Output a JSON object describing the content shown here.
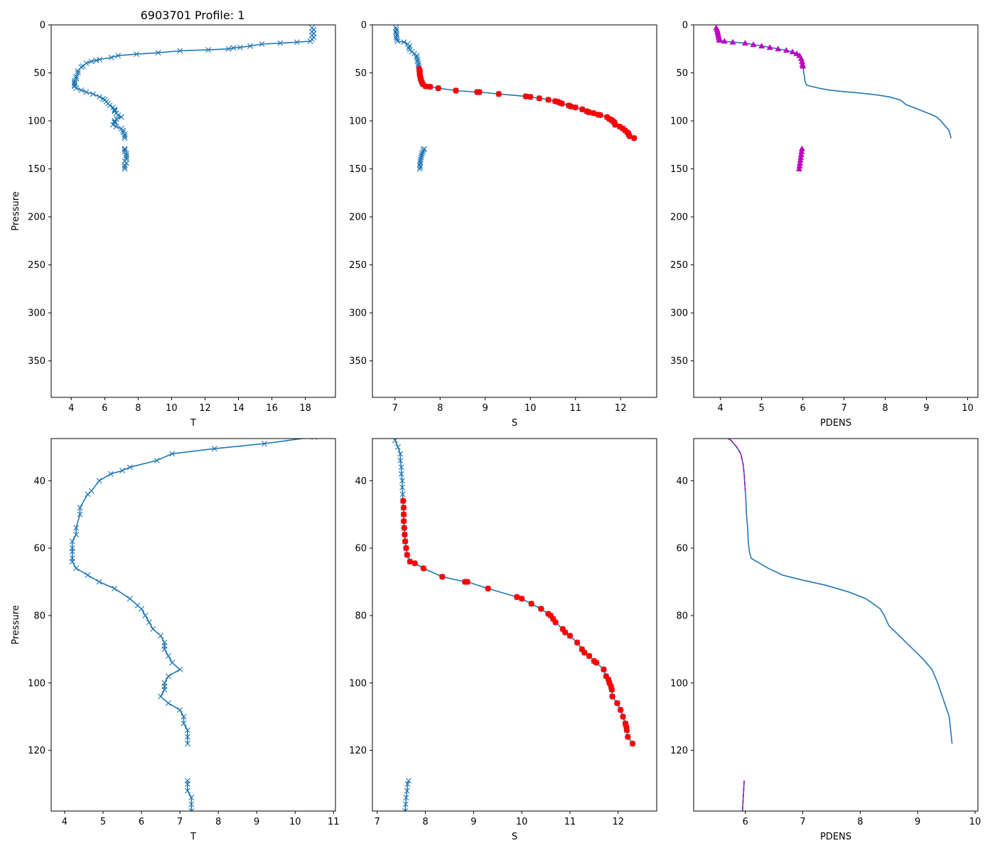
{
  "figure_title": "6903701 Profile: 1",
  "colors": {
    "series": "#1f77b4",
    "flag_red": "#ff0000",
    "flag_magenta": "#bf00bf"
  },
  "profiles": {
    "T": [
      [
        18.4,
        3
      ],
      [
        18.5,
        5
      ],
      [
        18.4,
        7
      ],
      [
        18.5,
        9
      ],
      [
        18.4,
        11
      ],
      [
        18.5,
        13
      ],
      [
        18.4,
        15
      ],
      [
        18.3,
        17
      ],
      [
        17.5,
        18
      ],
      [
        16.5,
        19
      ],
      [
        15.4,
        20
      ],
      [
        14.7,
        22
      ],
      [
        14.1,
        23.5
      ],
      [
        13.7,
        24
      ],
      [
        13.4,
        25
      ],
      [
        12.2,
        26
      ],
      [
        10.5,
        27
      ],
      [
        9.2,
        29
      ],
      [
        7.9,
        30.5
      ],
      [
        6.8,
        32
      ],
      [
        6.4,
        34
      ],
      [
        5.7,
        36
      ],
      [
        5.5,
        37
      ],
      [
        5.2,
        38
      ],
      [
        4.9,
        40
      ],
      [
        4.7,
        43
      ],
      [
        4.6,
        44
      ],
      [
        4.4,
        48
      ],
      [
        4.4,
        50
      ],
      [
        4.3,
        54
      ],
      [
        4.3,
        56
      ],
      [
        4.2,
        58
      ],
      [
        4.2,
        60
      ],
      [
        4.2,
        61
      ],
      [
        4.2,
        63
      ],
      [
        4.2,
        64
      ],
      [
        4.3,
        66
      ],
      [
        4.6,
        68
      ],
      [
        4.9,
        70
      ],
      [
        5.3,
        72
      ],
      [
        5.7,
        75
      ],
      [
        5.9,
        77
      ],
      [
        6.0,
        78
      ],
      [
        6.1,
        80
      ],
      [
        6.2,
        82
      ],
      [
        6.3,
        84
      ],
      [
        6.5,
        86
      ],
      [
        6.6,
        88
      ],
      [
        6.6,
        89
      ],
      [
        6.6,
        90
      ],
      [
        6.7,
        92
      ],
      [
        6.8,
        94
      ],
      [
        7.0,
        96
      ],
      [
        6.7,
        98
      ],
      [
        6.6,
        100
      ],
      [
        6.6,
        101
      ],
      [
        6.6,
        102
      ],
      [
        6.5,
        104
      ],
      [
        6.7,
        106
      ],
      [
        7.0,
        108
      ],
      [
        7.1,
        110
      ],
      [
        7.1,
        112
      ],
      [
        7.2,
        114
      ],
      [
        7.2,
        116
      ],
      [
        7.2,
        118
      ],
      null,
      [
        7.2,
        129
      ],
      [
        7.2,
        130
      ],
      [
        7.2,
        132
      ],
      [
        7.3,
        134
      ],
      [
        7.3,
        136
      ],
      [
        7.3,
        138
      ],
      [
        7.3,
        140
      ],
      [
        7.2,
        142
      ],
      [
        7.3,
        144
      ],
      [
        7.2,
        146
      ],
      [
        7.2,
        148
      ],
      [
        7.2,
        150
      ]
    ],
    "S": [
      [
        7.02,
        3
      ],
      [
        7.03,
        5
      ],
      [
        7.02,
        7
      ],
      [
        7.03,
        9
      ],
      [
        7.04,
        11
      ],
      [
        7.03,
        13
      ],
      [
        7.04,
        15
      ],
      [
        7.06,
        17
      ],
      [
        7.2,
        18
      ],
      [
        7.28,
        20
      ],
      [
        7.32,
        22
      ],
      [
        7.31,
        24
      ],
      [
        7.33,
        26
      ],
      [
        7.37,
        28
      ],
      [
        7.43,
        30
      ],
      [
        7.48,
        32
      ],
      [
        7.48,
        34
      ],
      [
        7.5,
        36
      ],
      [
        7.5,
        38
      ],
      [
        7.52,
        40
      ],
      [
        7.52,
        42
      ],
      [
        7.53,
        44
      ],
      [
        7.53,
        46
      ],
      [
        7.54,
        48
      ],
      [
        7.55,
        50
      ],
      [
        7.55,
        52
      ],
      [
        7.56,
        54
      ],
      [
        7.57,
        56
      ],
      [
        7.58,
        58
      ],
      [
        7.6,
        60
      ],
      [
        7.62,
        62
      ],
      [
        7.68,
        64
      ],
      [
        7.78,
        64.5
      ],
      [
        7.96,
        66
      ],
      [
        8.35,
        68.5
      ],
      [
        8.82,
        70
      ],
      [
        8.87,
        70
      ],
      [
        9.3,
        72
      ],
      [
        9.9,
        74.5
      ],
      [
        10.0,
        75
      ],
      [
        10.2,
        76.5
      ],
      [
        10.4,
        78
      ],
      [
        10.55,
        79.5
      ],
      [
        10.6,
        80
      ],
      [
        10.65,
        81
      ],
      [
        10.7,
        82
      ],
      [
        10.85,
        84
      ],
      [
        10.9,
        85
      ],
      [
        11.0,
        86
      ],
      [
        11.15,
        88
      ],
      [
        11.25,
        90
      ],
      [
        11.3,
        91
      ],
      [
        11.4,
        92
      ],
      [
        11.5,
        93.5
      ],
      [
        11.55,
        94
      ],
      [
        11.7,
        96
      ],
      [
        11.75,
        98
      ],
      [
        11.8,
        99
      ],
      [
        11.82,
        100
      ],
      [
        11.85,
        101
      ],
      [
        11.87,
        102
      ],
      [
        11.88,
        104
      ],
      [
        11.98,
        106
      ],
      [
        12.05,
        108
      ],
      [
        12.1,
        110
      ],
      [
        12.15,
        112
      ],
      [
        12.17,
        113
      ],
      [
        12.18,
        114
      ],
      [
        12.2,
        116
      ],
      [
        12.3,
        118
      ],
      null,
      [
        7.65,
        129
      ],
      [
        7.63,
        130
      ],
      [
        7.62,
        132
      ],
      [
        7.6,
        134
      ],
      [
        7.59,
        136
      ],
      [
        7.58,
        138
      ],
      [
        7.57,
        140
      ],
      [
        7.56,
        142
      ],
      [
        7.56,
        144
      ],
      [
        7.55,
        146
      ],
      [
        7.56,
        148
      ],
      [
        7.55,
        150
      ]
    ],
    "S_flag_p": [
      [
        7.54,
        46
      ],
      [
        7.55,
        48
      ],
      [
        7.55,
        50
      ],
      [
        7.55,
        52
      ],
      [
        7.56,
        54
      ],
      [
        7.57,
        56
      ],
      [
        7.58,
        58
      ],
      [
        7.6,
        60
      ],
      [
        7.62,
        62
      ],
      [
        7.68,
        64
      ],
      [
        7.78,
        64.5
      ],
      [
        7.96,
        66
      ],
      [
        8.35,
        68.5
      ],
      [
        8.82,
        70
      ],
      [
        8.87,
        70
      ],
      [
        9.3,
        72
      ],
      [
        9.9,
        74.5
      ],
      [
        10.0,
        75
      ],
      [
        10.2,
        76.5
      ],
      [
        10.4,
        78
      ],
      [
        10.55,
        79.5
      ],
      [
        10.6,
        80
      ],
      [
        10.65,
        81
      ],
      [
        10.7,
        82
      ],
      [
        10.85,
        84
      ],
      [
        10.9,
        85
      ],
      [
        11.0,
        86
      ],
      [
        11.15,
        88
      ],
      [
        11.25,
        90
      ],
      [
        11.3,
        91
      ],
      [
        11.4,
        92
      ],
      [
        11.5,
        93.5
      ],
      [
        11.55,
        94
      ],
      [
        11.7,
        96
      ],
      [
        11.75,
        98
      ],
      [
        11.8,
        99
      ],
      [
        11.82,
        100
      ],
      [
        11.85,
        101
      ],
      [
        11.87,
        102
      ],
      [
        11.88,
        104
      ],
      [
        11.98,
        106
      ],
      [
        12.05,
        108
      ],
      [
        12.1,
        110
      ],
      [
        12.15,
        112
      ],
      [
        12.17,
        113
      ],
      [
        12.18,
        114
      ],
      [
        12.2,
        116
      ],
      [
        12.3,
        118
      ]
    ],
    "PDENS": [
      [
        3.9,
        3
      ],
      [
        3.92,
        5
      ],
      [
        3.93,
        7
      ],
      [
        3.94,
        9
      ],
      [
        3.95,
        11
      ],
      [
        3.96,
        13
      ],
      [
        3.97,
        15
      ],
      [
        3.98,
        16
      ],
      [
        4.1,
        17
      ],
      [
        4.3,
        18
      ],
      [
        4.6,
        19
      ],
      [
        4.8,
        20.5
      ],
      [
        5.0,
        22
      ],
      [
        5.2,
        23.5
      ],
      [
        5.4,
        25
      ],
      [
        5.6,
        26.5
      ],
      [
        5.75,
        28
      ],
      [
        5.85,
        30
      ],
      [
        5.92,
        32
      ],
      [
        5.96,
        35
      ],
      [
        5.98,
        38
      ],
      [
        5.99,
        41
      ],
      [
        6.0,
        43
      ],
      [
        6.01,
        46
      ],
      [
        6.02,
        50
      ],
      [
        6.04,
        54
      ],
      [
        6.05,
        58
      ],
      [
        6.07,
        61
      ],
      [
        6.1,
        63
      ],
      [
        6.2,
        64
      ],
      [
        6.4,
        66
      ],
      [
        6.65,
        68
      ],
      [
        7.0,
        69.5
      ],
      [
        7.4,
        71
      ],
      [
        7.8,
        73
      ],
      [
        8.1,
        75
      ],
      [
        8.35,
        78
      ],
      [
        8.42,
        80
      ],
      [
        8.5,
        83
      ],
      [
        8.8,
        88
      ],
      [
        9.1,
        93
      ],
      [
        9.25,
        96
      ],
      [
        9.35,
        100
      ],
      [
        9.45,
        105
      ],
      [
        9.55,
        110
      ],
      [
        9.6,
        118
      ],
      null,
      [
        5.98,
        129
      ],
      [
        5.97,
        132
      ],
      [
        5.96,
        135
      ],
      [
        5.95,
        138
      ],
      [
        5.94,
        141
      ],
      [
        5.93,
        144
      ],
      [
        5.92,
        147
      ],
      [
        5.91,
        150
      ]
    ],
    "PDENS_flag_top": [
      [
        3.9,
        3
      ],
      [
        3.92,
        5
      ],
      [
        3.93,
        7
      ],
      [
        3.94,
        9
      ],
      [
        3.95,
        11
      ],
      [
        3.96,
        13
      ],
      [
        3.97,
        15
      ],
      [
        3.98,
        16
      ],
      [
        4.1,
        17
      ],
      [
        4.3,
        18
      ],
      [
        4.6,
        19
      ],
      [
        4.8,
        20.5
      ],
      [
        5.0,
        22
      ],
      [
        5.2,
        23.5
      ],
      [
        5.4,
        25
      ],
      [
        5.6,
        26.5
      ],
      [
        5.75,
        28
      ],
      [
        5.85,
        30
      ],
      [
        5.92,
        32
      ],
      [
        5.96,
        35
      ],
      [
        5.98,
        38
      ],
      [
        5.99,
        41
      ],
      [
        6.0,
        43
      ]
    ],
    "PDENS_flag_bottom": [
      [
        5.98,
        129
      ],
      [
        5.97,
        132
      ],
      [
        5.96,
        135
      ],
      [
        5.95,
        138
      ],
      [
        5.94,
        141
      ],
      [
        5.93,
        144
      ],
      [
        5.92,
        147
      ],
      [
        5.91,
        150
      ]
    ]
  },
  "chart_data": [
    {
      "type": "line",
      "panel": "top-left",
      "title": "6903701 Profile: 1",
      "xlabel": "T",
      "ylabel": "Pressure",
      "xlim": [
        2.8,
        19.8
      ],
      "ylim": [
        388,
        0
      ],
      "yinvert": true,
      "xticks": [
        4,
        6,
        8,
        10,
        12,
        14,
        16,
        18
      ],
      "yticks": [
        0,
        50,
        100,
        150,
        200,
        250,
        300,
        350
      ],
      "series": [
        {
          "name": "T",
          "key": "T",
          "marker": "x",
          "line": true
        }
      ]
    },
    {
      "type": "line",
      "panel": "top-middle",
      "xlabel": "S",
      "ylabel": "",
      "xlim": [
        6.5,
        12.8
      ],
      "ylim": [
        388,
        0
      ],
      "yinvert": true,
      "xticks": [
        7,
        8,
        9,
        10,
        11,
        12
      ],
      "yticks": [
        0,
        50,
        100,
        150,
        200,
        250,
        300,
        350
      ],
      "series": [
        {
          "name": "S",
          "key": "S",
          "marker": "x",
          "line": true
        },
        {
          "name": "S flagged",
          "key": "S_flag_p",
          "marker": "red-dot",
          "line": false
        }
      ]
    },
    {
      "type": "line",
      "panel": "top-right",
      "xlabel": "PDENS",
      "ylabel": "",
      "xlim": [
        3.35,
        10.25
      ],
      "ylim": [
        388,
        0
      ],
      "yinvert": true,
      "xticks": [
        4,
        5,
        6,
        7,
        8,
        9,
        10
      ],
      "yticks": [
        0,
        50,
        100,
        150,
        200,
        250,
        300,
        350
      ],
      "series": [
        {
          "name": "PDENS",
          "key": "PDENS",
          "marker": "none",
          "line": true
        },
        {
          "name": "PDENS flagged",
          "key": "PDENS_flag_top",
          "marker": "magenta-triangle",
          "line": false
        },
        {
          "name": "PDENS flagged deep",
          "key": "PDENS_flag_bottom",
          "marker": "magenta-triangle",
          "line": false
        }
      ]
    },
    {
      "type": "line",
      "panel": "bottom-left",
      "xlabel": "T",
      "ylabel": "Pressure",
      "xlim": [
        3.65,
        11.05
      ],
      "ylim": [
        138,
        27.5
      ],
      "yinvert": true,
      "xticks": [
        4,
        5,
        6,
        7,
        8,
        9,
        10,
        11
      ],
      "yticks": [
        40,
        60,
        80,
        100,
        120
      ],
      "series": [
        {
          "name": "T",
          "key": "T",
          "marker": "x",
          "line": true
        }
      ]
    },
    {
      "type": "line",
      "panel": "bottom-middle",
      "xlabel": "S",
      "ylabel": "",
      "xlim": [
        6.9,
        12.8
      ],
      "ylim": [
        138,
        27.5
      ],
      "yinvert": true,
      "xticks": [
        7,
        8,
        9,
        10,
        11,
        12
      ],
      "yticks": [
        40,
        60,
        80,
        100,
        120
      ],
      "series": [
        {
          "name": "S",
          "key": "S",
          "marker": "x",
          "line": true
        },
        {
          "name": "S flagged",
          "key": "S_flag_p",
          "marker": "red-dot",
          "line": false
        }
      ]
    },
    {
      "type": "line",
      "panel": "bottom-right",
      "xlabel": "PDENS",
      "ylabel": "",
      "xlim": [
        5.1,
        10.05
      ],
      "ylim": [
        138,
        27.5
      ],
      "yinvert": true,
      "xticks": [
        6,
        7,
        8,
        9,
        10
      ],
      "yticks": [
        40,
        60,
        80,
        100,
        120
      ],
      "series": [
        {
          "name": "PDENS",
          "key": "PDENS",
          "marker": "none",
          "line": true
        },
        {
          "name": "PDENS flagged",
          "key": "PDENS_flag_top",
          "marker": "magenta-dash",
          "line": true
        },
        {
          "name": "PDENS flagged deep",
          "key": "PDENS_flag_bottom",
          "marker": "magenta-dash",
          "line": true
        }
      ]
    }
  ]
}
